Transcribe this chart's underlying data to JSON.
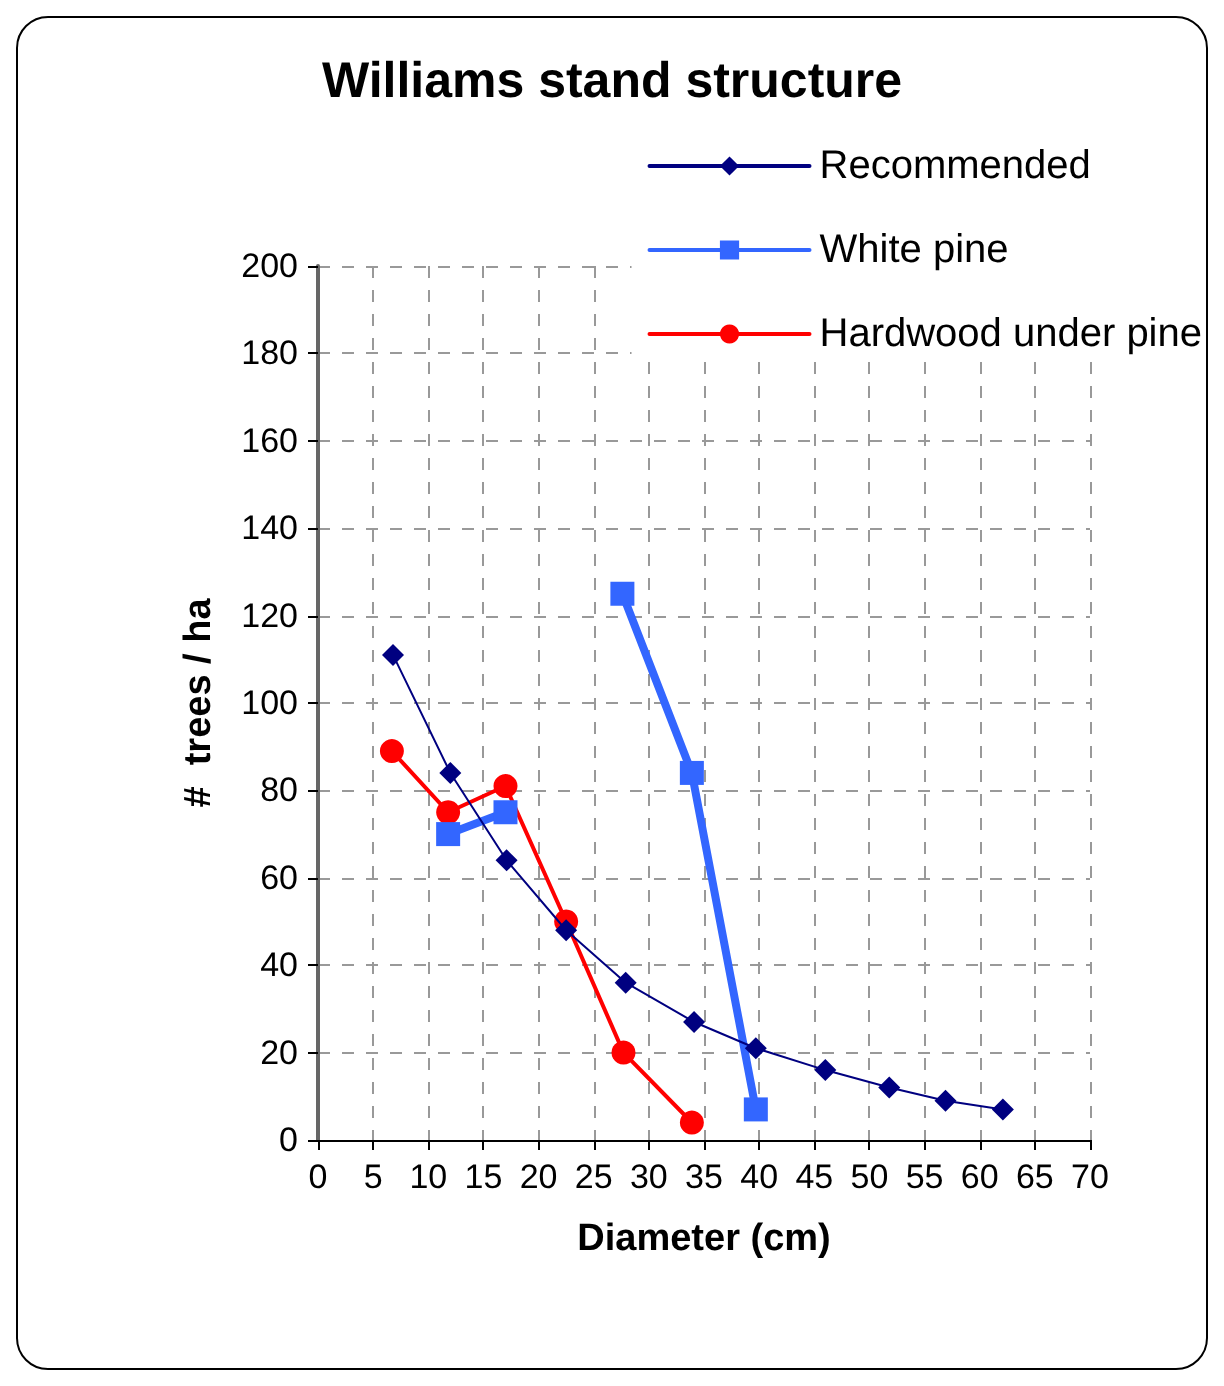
{
  "chart_data": {
    "type": "line",
    "title": "Williams stand structure",
    "xlabel": "Diameter (cm)",
    "ylabel": "#  trees / ha",
    "xlim": [
      0,
      70
    ],
    "xticks": [
      0,
      5,
      10,
      15,
      20,
      25,
      30,
      35,
      40,
      45,
      50,
      55,
      60,
      65,
      70
    ],
    "ylim": [
      0,
      200
    ],
    "yticks": [
      0,
      20,
      40,
      60,
      80,
      100,
      120,
      140,
      160,
      180,
      200
    ],
    "grid": true,
    "legend": "top right",
    "line_style": "solid",
    "series": [
      {
        "name": "Recommended",
        "color": "#000080",
        "marker": "diamond",
        "x": [
          6.8,
          12.0,
          17.1,
          22.5,
          27.9,
          34.1,
          39.7,
          46.0,
          51.8,
          56.9,
          62.1
        ],
        "values": [
          111,
          84,
          64,
          48,
          36,
          27,
          21,
          16,
          12,
          9,
          7
        ]
      },
      {
        "name": "White pine",
        "color": "#3366ff",
        "marker": "square",
        "x": [
          11.8,
          17.0,
          22.5,
          27.6,
          33.9,
          39.7
        ],
        "values": [
          70,
          75,
          null,
          125,
          84,
          7
        ]
      },
      {
        "name": "Hardwood under pine",
        "color": "#ff0000",
        "marker": "circle",
        "x": [
          6.7,
          11.8,
          17.0,
          22.5,
          27.7,
          33.9
        ],
        "values": [
          89,
          75,
          81,
          50,
          20,
          4
        ]
      }
    ]
  }
}
